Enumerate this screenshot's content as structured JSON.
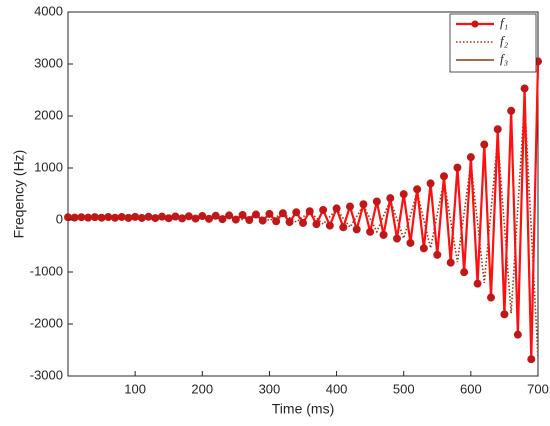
{
  "chart_data": {
    "type": "line",
    "xlabel": "Time (ms)",
    "ylabel": "Freqency (Hz)",
    "xlim": [
      0,
      700
    ],
    "xticks": [
      100,
      200,
      300,
      400,
      500,
      600,
      700
    ],
    "ylim": [
      -3000,
      4000
    ],
    "yticks": [
      -3000,
      -2000,
      -1000,
      0,
      1000,
      2000,
      3000,
      4000
    ],
    "grid": false,
    "legend": "top-right",
    "series": [
      {
        "name": "f₁",
        "color": "#ff1010",
        "marker_color": "#c01818",
        "style": "solid-marker",
        "x": [
          0,
          10,
          20,
          30,
          40,
          50,
          60,
          70,
          80,
          90,
          100,
          110,
          120,
          130,
          140,
          150,
          160,
          170,
          180,
          190,
          200,
          210,
          220,
          230,
          240,
          250,
          260,
          270,
          280,
          290,
          300,
          310,
          320,
          330,
          340,
          350,
          360,
          370,
          380,
          390,
          400,
          410,
          420,
          430,
          440,
          450,
          460,
          470,
          480,
          490,
          500,
          510,
          520,
          530,
          540,
          550,
          560,
          570,
          580,
          590,
          600,
          610,
          620,
          630,
          640,
          650,
          660,
          670,
          680,
          690,
          700
        ],
        "values": [
          54,
          46,
          54,
          45,
          55,
          44,
          57,
          43,
          58,
          41,
          60,
          39,
          62,
          37,
          64,
          34,
          67,
          31,
          71,
          27,
          76,
          22,
          81,
          16,
          88,
          8,
          96,
          0,
          105,
          -11,
          117,
          -24,
          131,
          -39,
          148,
          -57,
          168,
          -80,
          193,
          -107,
          223,
          -140,
          259,
          -180,
          303,
          -228,
          356,
          -286,
          420,
          -357,
          497,
          -442,
          591,
          -545,
          704,
          -670,
          841,
          -820,
          1007,
          -1003,
          1208,
          -1224,
          1451,
          -1491,
          1745,
          -1814,
          2100,
          -2205,
          2530,
          -2677,
          3050
        ]
      },
      {
        "name": "f₂",
        "color": "#a0300a",
        "style": "dotted",
        "x": [
          0,
          20,
          40,
          60,
          80,
          100,
          120,
          140,
          160,
          180,
          200,
          220,
          240,
          260,
          280,
          300,
          320,
          340,
          360,
          380,
          400,
          420,
          440,
          460,
          480,
          500,
          520,
          540,
          560,
          580,
          600,
          620,
          640,
          660,
          680,
          700
        ],
        "values": [
          54,
          46,
          55,
          44,
          57,
          41,
          61,
          37,
          65,
          31,
          73,
          22,
          84,
          9,
          100,
          -10,
          123,
          -38,
          156,
          -79,
          206,
          -138,
          278,
          -225,
          383,
          -352,
          537,
          -539,
          762,
          -811,
          1092,
          -1211,
          1576,
          -1795,
          2282,
          -2650
        ]
      },
      {
        "name": "f₃",
        "color": "#8b3a10",
        "style": "solid",
        "x": [
          0,
          10,
          20,
          30,
          40,
          50,
          60,
          70,
          80,
          90,
          100,
          110,
          120,
          130,
          140,
          150,
          160,
          170,
          180,
          190,
          200,
          210,
          220,
          230,
          240,
          250,
          260,
          270,
          280,
          290,
          300,
          310,
          320,
          330,
          340,
          350,
          360,
          370,
          380,
          390,
          400,
          410,
          420,
          430,
          440,
          450,
          460,
          470,
          480,
          490,
          500,
          510,
          520,
          530,
          540,
          550,
          560,
          570,
          580,
          590,
          600,
          610,
          620,
          630,
          640,
          650,
          660,
          670,
          680,
          690,
          700
        ],
        "values": [
          54,
          46,
          54,
          45,
          55,
          44,
          57,
          43,
          58,
          41,
          60,
          40,
          61,
          38,
          63,
          35,
          66,
          32,
          70,
          28,
          75,
          23,
          79,
          18,
          86,
          10,
          94,
          2,
          102,
          -8,
          114,
          -20,
          127,
          -35,
          143,
          -52,
          162,
          -74,
          186,
          -99,
          214,
          -131,
          249,
          -169,
          290,
          -214,
          341,
          -269,
          402,
          -337,
          475,
          -417,
          564,
          -515,
          671,
          -634,
          801,
          -777,
          959,
          -950,
          1150,
          -1160,
          1381,
          -1414,
          1660,
          -1721,
          1998,
          -2092,
          2406,
          -2541,
          2900
        ]
      }
    ]
  }
}
